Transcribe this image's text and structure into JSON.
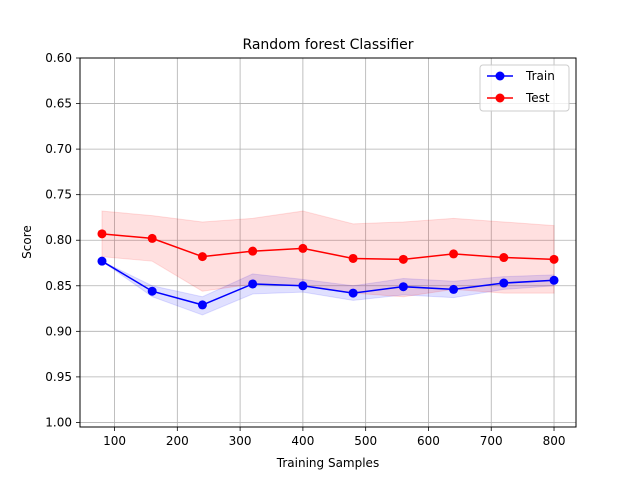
{
  "chart_data": {
    "type": "line",
    "title": "Random forest Classifier",
    "xlabel": "Training Samples",
    "ylabel": "Score",
    "x": [
      80,
      160,
      240,
      320,
      400,
      480,
      560,
      640,
      720,
      800
    ],
    "xlim": [
      45,
      835
    ],
    "ylim": [
      1.005,
      0.6
    ],
    "y_inverted": true,
    "xticks": [
      100,
      200,
      300,
      400,
      500,
      600,
      700,
      800
    ],
    "yticks": [
      0.6,
      0.65,
      0.7,
      0.75,
      0.8,
      0.85,
      0.9,
      0.95,
      1.0
    ],
    "xtick_labels": [
      "100",
      "200",
      "300",
      "400",
      "500",
      "600",
      "700",
      "800"
    ],
    "ytick_labels": [
      "0.60",
      "0.65",
      "0.70",
      "0.75",
      "0.80",
      "0.85",
      "0.90",
      "0.95",
      "1.00"
    ],
    "grid": true,
    "legend_position": "top-right",
    "series": [
      {
        "name": "Train",
        "color": "#0000ff",
        "band_color": "#0000ff",
        "values": [
          0.823,
          0.856,
          0.871,
          0.848,
          0.85,
          0.858,
          0.851,
          0.854,
          0.847,
          0.844
        ],
        "lower": [
          0.823,
          0.85,
          0.862,
          0.837,
          0.843,
          0.85,
          0.842,
          0.845,
          0.84,
          0.838
        ],
        "upper": [
          0.823,
          0.862,
          0.882,
          0.859,
          0.857,
          0.866,
          0.86,
          0.863,
          0.854,
          0.85
        ]
      },
      {
        "name": "Test",
        "color": "#ff0000",
        "band_color": "#ff0000",
        "values": [
          0.793,
          0.798,
          0.818,
          0.812,
          0.809,
          0.82,
          0.821,
          0.815,
          0.819,
          0.821
        ],
        "lower": [
          0.768,
          0.773,
          0.78,
          0.776,
          0.768,
          0.782,
          0.78,
          0.776,
          0.78,
          0.784
        ],
        "upper": [
          0.818,
          0.823,
          0.856,
          0.848,
          0.85,
          0.858,
          0.862,
          0.854,
          0.858,
          0.858
        ]
      }
    ]
  }
}
